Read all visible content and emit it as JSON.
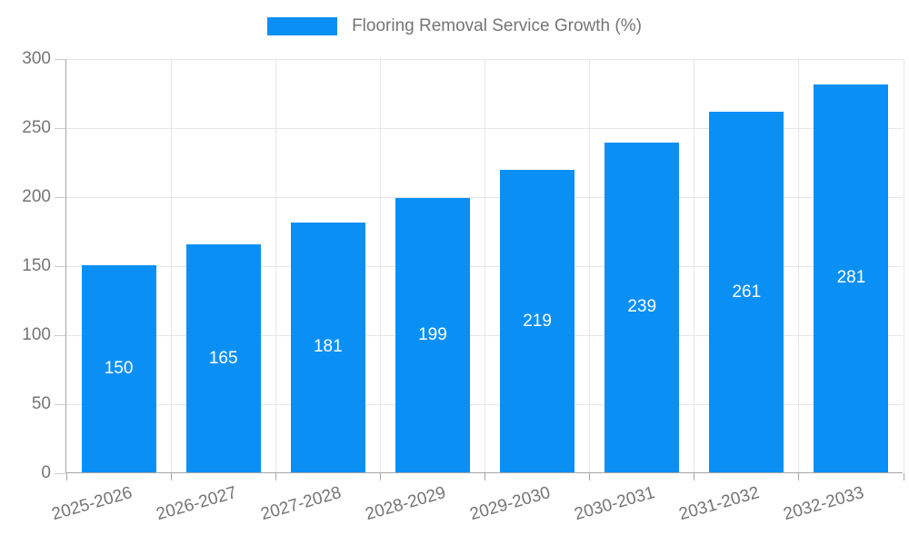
{
  "legend": {
    "label": "Flooring Removal Service Growth (%)",
    "swatch_color": "#0a90f5"
  },
  "chart_data": {
    "type": "bar",
    "title": "Flooring Removal Service Growth (%)",
    "categories": [
      "2025-2026",
      "2026-2027",
      "2027-2028",
      "2028-2029",
      "2029-2030",
      "2030-2031",
      "2031-2032",
      "2032-2033"
    ],
    "values": [
      150,
      165,
      181,
      199,
      219,
      239,
      261,
      281
    ],
    "value_labels": [
      "150",
      "165",
      "181",
      "199",
      "219",
      "239",
      "261",
      "281"
    ],
    "xlabel": "",
    "ylabel": "",
    "ylim": [
      0,
      300
    ],
    "yticks": [
      0,
      50,
      100,
      150,
      200,
      250,
      300
    ],
    "grid": true,
    "legend_position": "top-center",
    "bar_color": "#0a90f5",
    "value_label_color": "#ffffff",
    "grid_color": "#e6e6e6",
    "axis_color": "#a6a6a6",
    "text_color": "#757575"
  }
}
